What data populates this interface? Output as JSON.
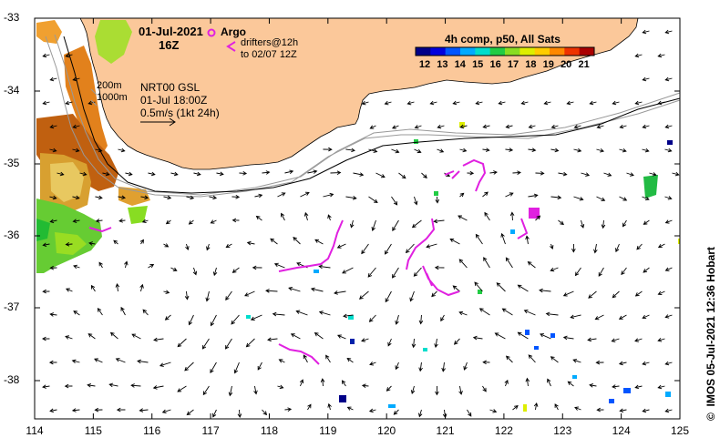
{
  "header": {
    "date": "01-Jul-2021",
    "hour": "16Z",
    "composite": "4h comp, p50, All Sats"
  },
  "legend": {
    "argo": "Argo",
    "drifters_line1": "drifters@12h",
    "drifters_line2": "to 02/07 12Z",
    "argo_color": "#e020e0",
    "drifter_color": "#e020e0"
  },
  "current_info": {
    "iso200": "200m",
    "iso1000": "1000m",
    "model": "NRT00 GSL",
    "valid": "01-Jul 18:00Z",
    "scale": "0.5m/s (1kt 24h)"
  },
  "colorbar": {
    "ticks": [
      "12",
      "13",
      "14",
      "15",
      "16",
      "17",
      "18",
      "19",
      "20",
      "21"
    ],
    "colors": [
      "#000088",
      "#0000dd",
      "#0055ff",
      "#00aaff",
      "#00ddcc",
      "#22cc44",
      "#88dd22",
      "#ddee00",
      "#ffcc00",
      "#ff8800",
      "#ee3300",
      "#aa0000"
    ]
  },
  "axes": {
    "y_ticks": [
      "-33",
      "-34",
      "-35",
      "-36",
      "-37",
      "-38"
    ],
    "x_ticks": [
      "114",
      "115",
      "116",
      "117",
      "118",
      "119",
      "120",
      "121",
      "122",
      "123",
      "124",
      "125"
    ]
  },
  "credit": "IMOS 05-Jul-2021 12:36 Hobart",
  "copyright": "©",
  "colors": {
    "land": "#fbc89a",
    "coast_stroke": "#000000",
    "isobath": "#999999",
    "arrow": "#000000"
  }
}
